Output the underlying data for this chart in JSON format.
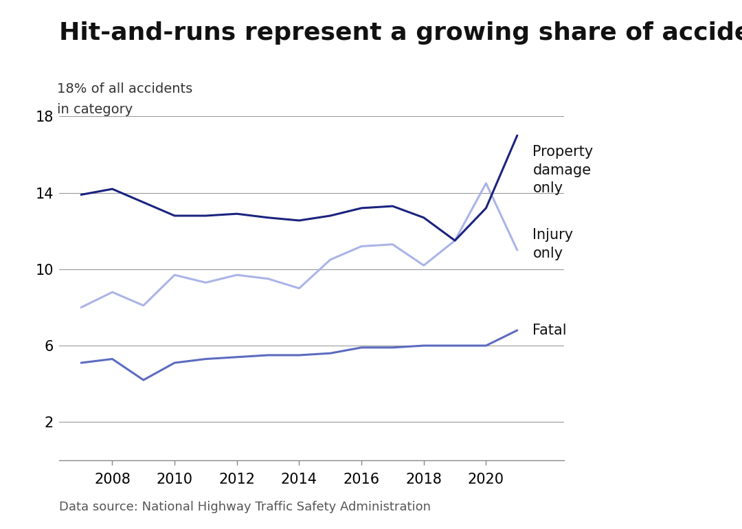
{
  "title": "Hit-and-runs represent a growing share of accidents",
  "ylabel_line1": "18% of all accidents",
  "ylabel_line2": "in category",
  "source": "Data source: National Highway Traffic Safety Administration",
  "years": [
    2007,
    2008,
    2009,
    2010,
    2011,
    2012,
    2013,
    2014,
    2015,
    2016,
    2017,
    2018,
    2019,
    2020,
    2021
  ],
  "property_damage": [
    13.9,
    14.2,
    13.5,
    12.8,
    12.8,
    12.9,
    12.7,
    12.55,
    12.8,
    13.2,
    13.3,
    12.7,
    11.5,
    13.2,
    17.0
  ],
  "injury_only": [
    8.0,
    8.8,
    8.1,
    9.7,
    9.3,
    9.7,
    9.5,
    9.0,
    10.5,
    11.2,
    11.3,
    10.2,
    11.5,
    14.5,
    11.0
  ],
  "fatal": [
    5.1,
    5.3,
    4.2,
    5.1,
    5.3,
    5.4,
    5.5,
    5.5,
    5.6,
    5.9,
    5.9,
    6.0,
    6.0,
    6.0,
    6.8
  ],
  "color_property": "#1a237e",
  "color_injury": "#aab4e8",
  "color_fatal": "#5c6bc0",
  "ylim": [
    0,
    18
  ],
  "yticks": [
    2,
    6,
    10,
    14,
    18
  ],
  "xticks": [
    2008,
    2010,
    2012,
    2014,
    2016,
    2018,
    2020
  ],
  "line_width": 2.2,
  "label_property": "Property\ndamage\nonly",
  "label_injury": "Injury\nonly",
  "label_fatal": "Fatal",
  "background_color": "#ffffff",
  "title_fontsize": 26,
  "label_fontsize": 15,
  "tick_fontsize": 15,
  "source_fontsize": 13,
  "grid_color": "#999999",
  "text_color": "#111111",
  "source_color": "#555555"
}
